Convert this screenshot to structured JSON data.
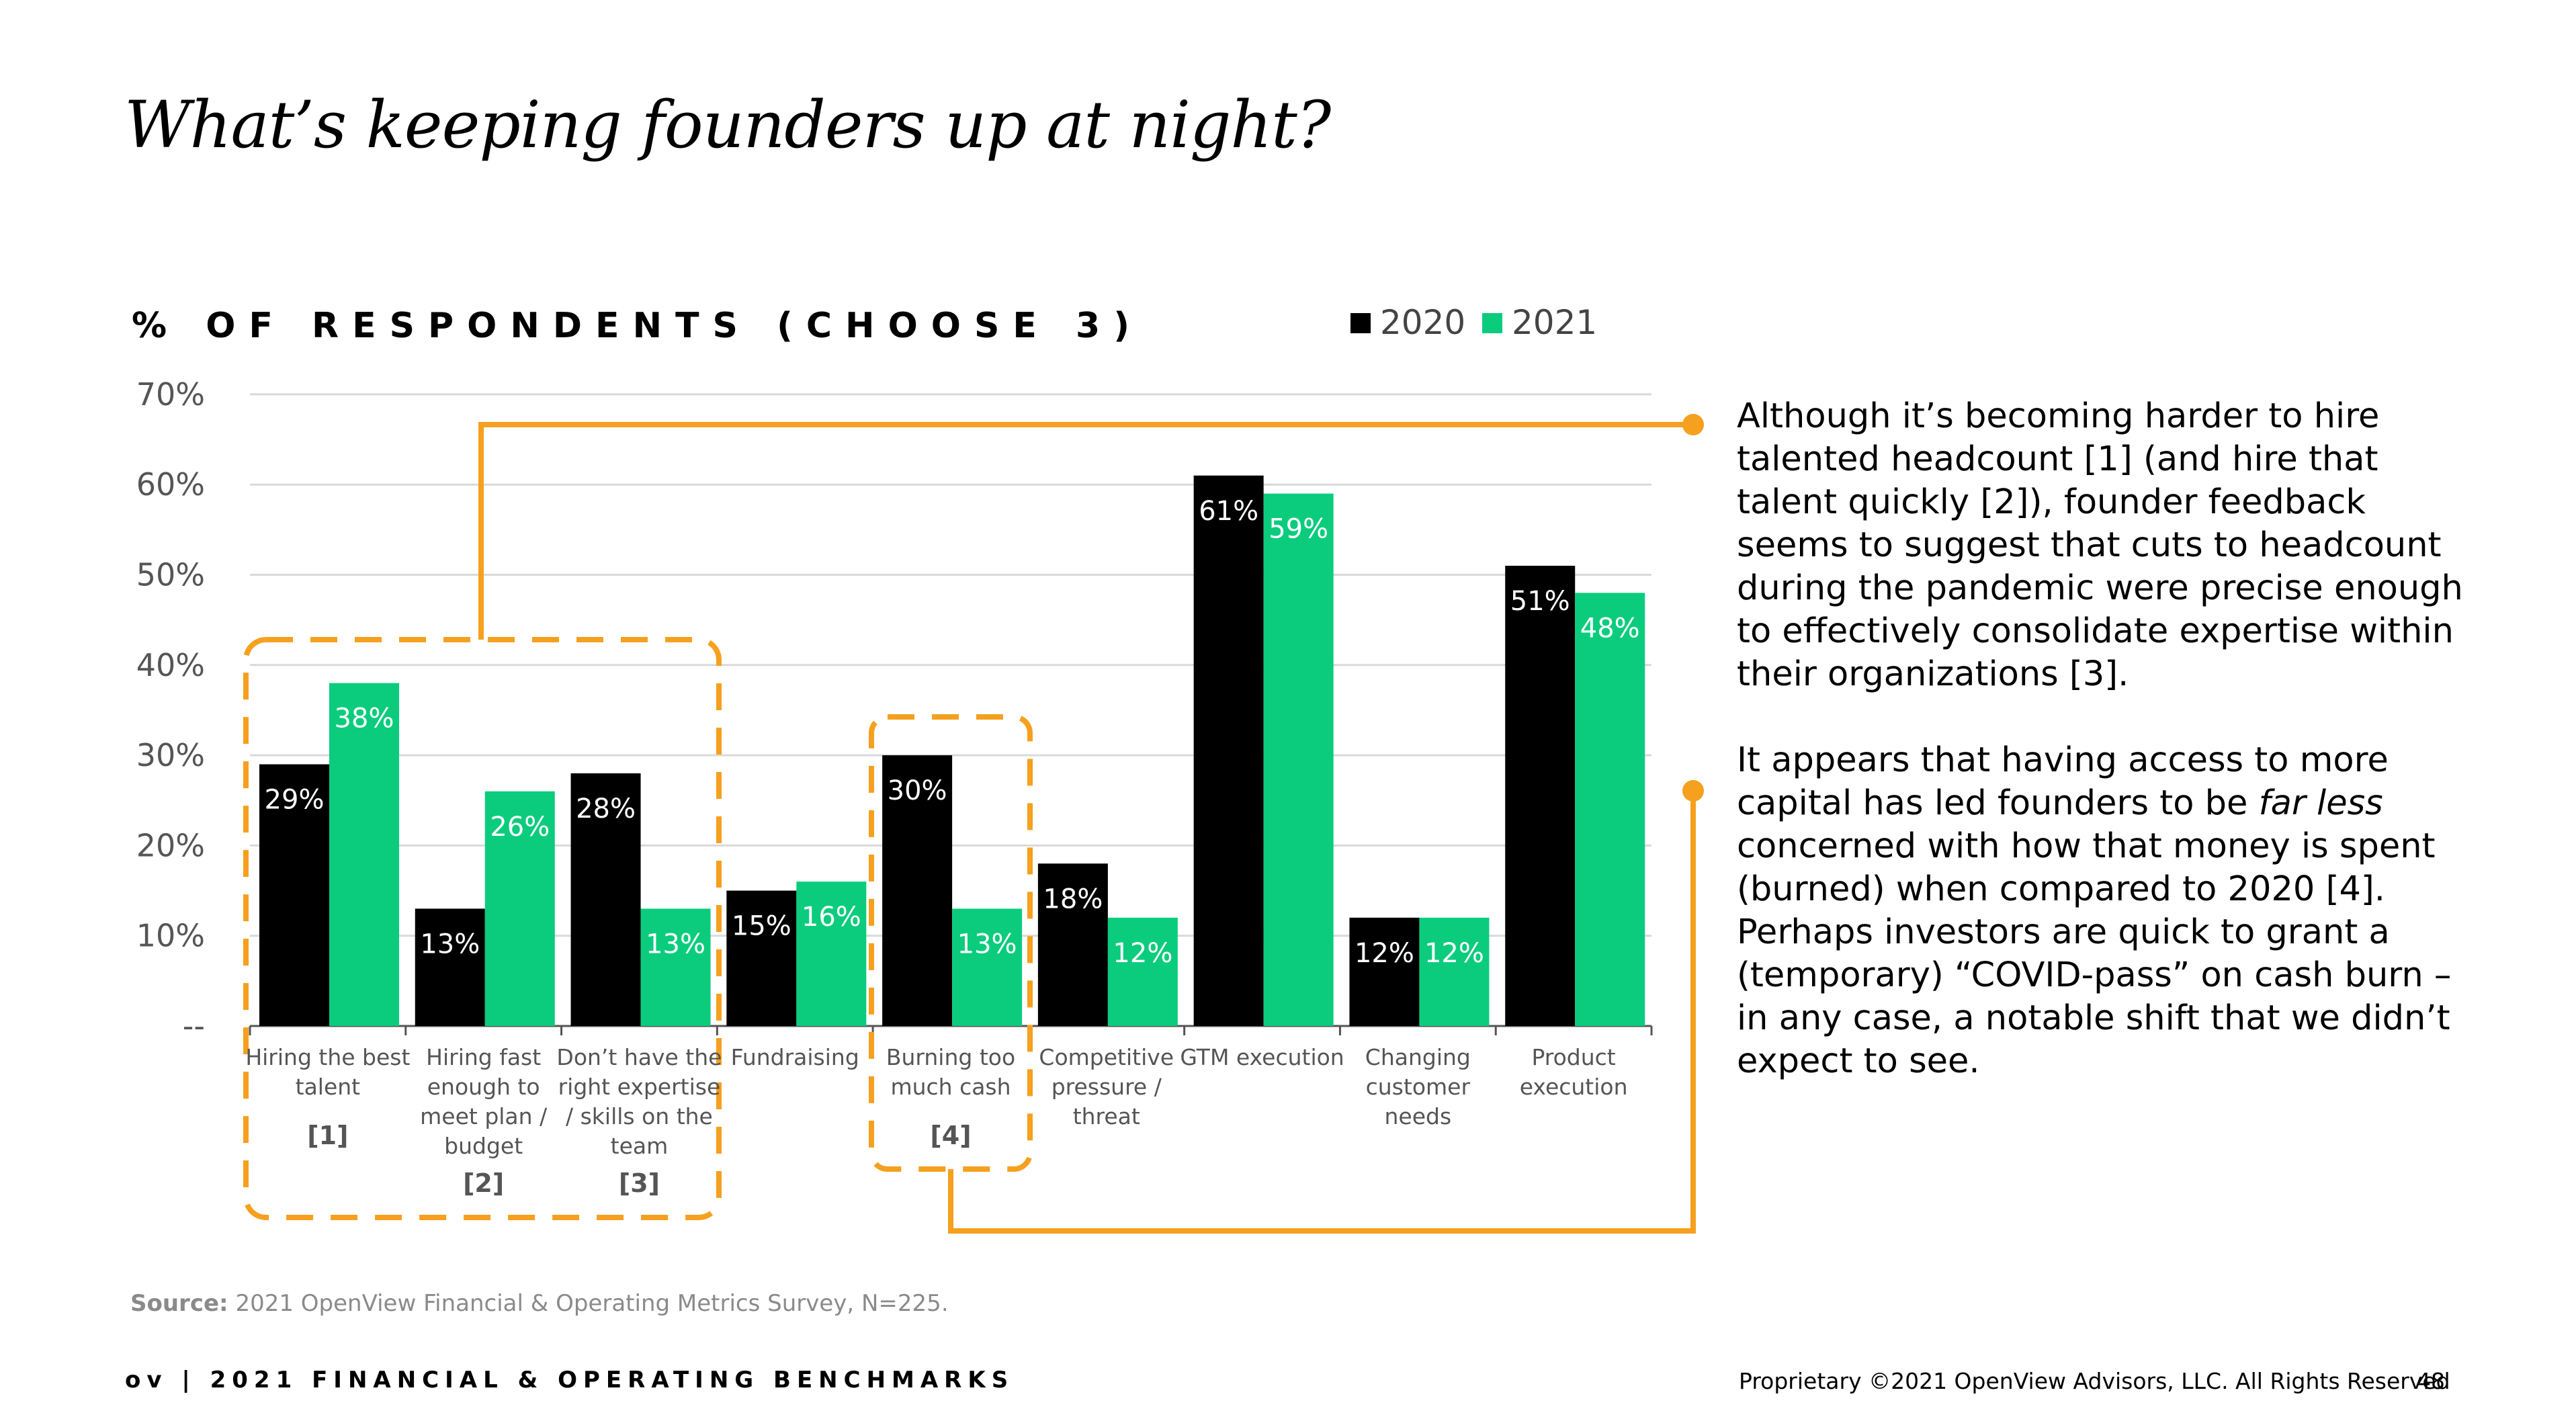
{
  "slide": {
    "title": "What’s keeping founders up at night?"
  },
  "chart_data": {
    "type": "bar",
    "title": "% OF RESPONDENTS (CHOOSE 3)",
    "xlabel": "",
    "ylabel": "",
    "ylim": [
      0,
      70
    ],
    "yticks": [
      "--",
      "10%",
      "20%",
      "30%",
      "40%",
      "50%",
      "60%",
      "70%"
    ],
    "grid": true,
    "legend_position": "top-right",
    "categories": [
      [
        "Hiring the best",
        "talent"
      ],
      [
        "Hiring fast",
        "enough to",
        "meet plan /",
        "budget"
      ],
      [
        "Don’t have the",
        "right expertise",
        "/ skills on the",
        "team"
      ],
      [
        "Fundraising"
      ],
      [
        "Burning too",
        "much cash"
      ],
      [
        "Competitive",
        "pressure /",
        "threat"
      ],
      [
        "GTM execution"
      ],
      [
        "Changing",
        "customer",
        "needs"
      ],
      [
        "Product",
        "execution"
      ]
    ],
    "refs": [
      "[1]",
      "[2]",
      "[3]",
      "",
      "[4]",
      "",
      "",
      "",
      ""
    ],
    "series": [
      {
        "name": "2020",
        "color": "#000000",
        "values": [
          29,
          13,
          28,
          15,
          30,
          18,
          61,
          12,
          51
        ],
        "labels": [
          "29%",
          "13%",
          "28%",
          "15%",
          "30%",
          "18%",
          "61%",
          "12%",
          "51%"
        ]
      },
      {
        "name": "2021",
        "color": "#0bcc7d",
        "values": [
          38,
          26,
          13,
          16,
          13,
          12,
          59,
          12,
          48
        ],
        "labels": [
          "38%",
          "26%",
          "13%",
          "16%",
          "13%",
          "12%",
          "59%",
          "12%",
          "48%"
        ]
      }
    ],
    "highlight_color": "#f5a01e"
  },
  "commentary": {
    "p1": "Although it’s becoming harder to hire talented headcount [1] (and hire that talent quickly [2]), founder feedback seems to suggest that cuts to headcount during the pandemic were precise enough to effectively consolidate expertise within their organizations [3].",
    "p2_before": "It appears that having access to more capital has led founders to be ",
    "p2_emphasis": "far less",
    "p2_after": " concerned with how that money is spent (burned) when compared to 2020 [4]. Perhaps investors are quick to grant a (temporary) “COVID-pass” on cash burn – in any case, a notable shift that we didn’t expect to see."
  },
  "source": {
    "label": "Source:",
    "text": " 2021 OpenView Financial & Operating Metrics Survey, N=225."
  },
  "footer": {
    "brand": "ov | 2021 FINANCIAL & OPERATING BENCHMARKS",
    "copyright": "Proprietary ©2021 OpenView Advisors, LLC. All Rights Reserved",
    "page_number": "48"
  }
}
